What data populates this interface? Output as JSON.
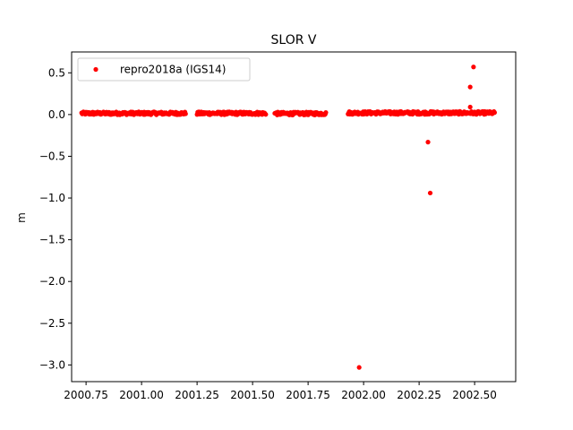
{
  "chart_data": {
    "type": "scatter",
    "title": "SLOR V",
    "xlabel": "",
    "ylabel": "m",
    "xlim": [
      2000.685,
      2002.685
    ],
    "ylim": [
      -3.2,
      0.75
    ],
    "xticks": [
      2000.75,
      2001.0,
      2001.25,
      2001.5,
      2001.75,
      2002.0,
      2002.25,
      2002.5
    ],
    "xtick_labels": [
      "2000.75",
      "2001.00",
      "2001.25",
      "2001.50",
      "2001.75",
      "2002.00",
      "2002.25",
      "2002.50"
    ],
    "yticks": [
      0.5,
      0.0,
      -0.5,
      -1.0,
      -1.5,
      -2.0,
      -2.5,
      -3.0
    ],
    "ytick_labels": [
      "0.5",
      "0.0",
      "−0.5",
      "−1.0",
      "−1.5",
      "−2.0",
      "−2.5",
      "−3.0"
    ],
    "grid": false,
    "legend_position": "top-left",
    "series": [
      {
        "name": "repro2018a (IGS14)",
        "color": "#ff0000",
        "segments": [
          {
            "start": 2000.73,
            "end": 2001.2,
            "mean": 0.015
          },
          {
            "start": 2001.25,
            "end": 2001.56,
            "mean": 0.015
          },
          {
            "start": 2001.6,
            "end": 2001.83,
            "mean": 0.012
          },
          {
            "start": 2001.93,
            "end": 2002.59,
            "mean": 0.02
          }
        ],
        "outliers": [
          {
            "x": 2001.98,
            "y": -3.03
          },
          {
            "x": 2002.29,
            "y": -0.33
          },
          {
            "x": 2002.3,
            "y": -0.94
          },
          {
            "x": 2002.48,
            "y": 0.33
          },
          {
            "x": 2002.48,
            "y": 0.09
          },
          {
            "x": 2002.495,
            "y": 0.57
          }
        ]
      }
    ]
  }
}
